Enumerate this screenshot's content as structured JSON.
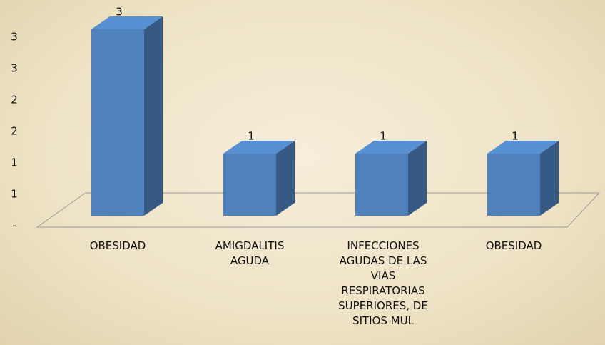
{
  "chart_data": {
    "type": "bar3d",
    "categories": [
      "OBESIDAD",
      "AMIGDALITIS AGUDA",
      "INFECCIONES AGUDAS DE LAS VIAS RESPIRATORIAS SUPERIORES, DE SITIOS MUL",
      "OBESIDAD"
    ],
    "values": [
      3,
      1,
      1,
      1
    ],
    "color": "#4f81bd",
    "ylim": [
      0,
      3
    ],
    "yticks": [
      {
        "value": 0,
        "label": "-"
      },
      {
        "value": 0.5,
        "label": "1"
      },
      1,
      {
        "value": 1.5,
        "label": "2"
      },
      2,
      {
        "value": 2.5,
        "label": "3"
      },
      3
    ]
  }
}
